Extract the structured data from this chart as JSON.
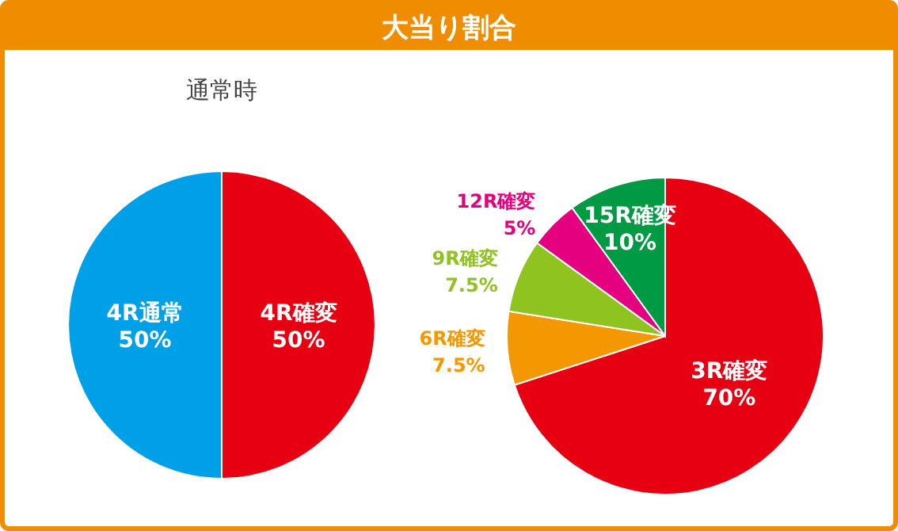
{
  "chart_data": [
    {
      "type": "pie",
      "title": "大当り割合",
      "subtitle": "通常時",
      "categories": [
        "4R確変",
        "4R通常"
      ],
      "values": [
        50,
        50
      ],
      "colors": [
        "#e60012",
        "#00a0e9"
      ],
      "value_labels": [
        "50%",
        "50%"
      ]
    },
    {
      "type": "pie",
      "categories": [
        "3R確変",
        "6R確変",
        "9R確変",
        "12R確変",
        "15R確変"
      ],
      "values": [
        70,
        7.5,
        7.5,
        5,
        10
      ],
      "colors": [
        "#e60012",
        "#f39800",
        "#8fc31f",
        "#e4007f",
        "#009944"
      ],
      "value_labels": [
        "70%",
        "7.5%",
        "7.5%",
        "5%",
        "10%"
      ]
    }
  ]
}
